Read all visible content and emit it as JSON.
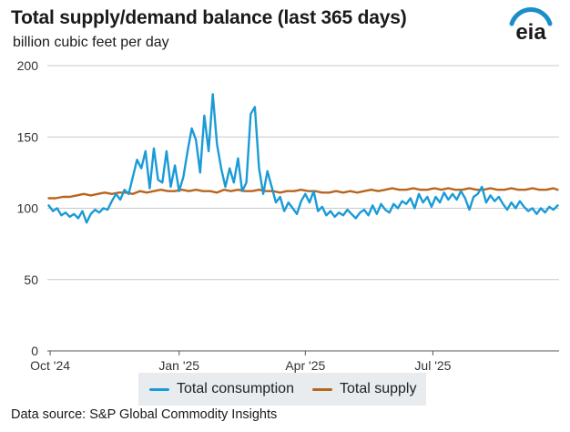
{
  "header": {
    "title": "Total supply/demand balance (last 365 days)",
    "subtitle": "billion cubic feet per day",
    "logo_text": "eia"
  },
  "legend": {
    "consumption_label": "Total consumption",
    "supply_label": "Total supply"
  },
  "footer": {
    "source": "Data source: S&P Global Commodity Insights"
  },
  "colors": {
    "consumption": "#1a9bd7",
    "supply": "#b8651f",
    "grid": "#c8c8c8",
    "logo_arc": "#1b8dc9"
  },
  "chart_data": {
    "type": "line",
    "ylim": [
      0,
      200
    ],
    "yticks": [
      0,
      50,
      100,
      150,
      200
    ],
    "xlim": [
      "2024-09-29",
      "2025-09-29"
    ],
    "xticks": [
      {
        "date": "2024-10-01",
        "label": "Oct '24"
      },
      {
        "date": "2025-01-01",
        "label": "Jan '25"
      },
      {
        "date": "2025-04-01",
        "label": "Apr '25"
      },
      {
        "date": "2025-07-01",
        "label": "Jul '25"
      }
    ],
    "grid": true,
    "legend_position": "bottom",
    "series": [
      {
        "name": "Total consumption",
        "points": [
          [
            "2024-09-30",
            102
          ],
          [
            "2024-10-03",
            98
          ],
          [
            "2024-10-06",
            100
          ],
          [
            "2024-10-09",
            95
          ],
          [
            "2024-10-12",
            97
          ],
          [
            "2024-10-15",
            94
          ],
          [
            "2024-10-18",
            96
          ],
          [
            "2024-10-21",
            93
          ],
          [
            "2024-10-24",
            98
          ],
          [
            "2024-10-27",
            90
          ],
          [
            "2024-10-30",
            96
          ],
          [
            "2024-11-02",
            99
          ],
          [
            "2024-11-05",
            97
          ],
          [
            "2024-11-08",
            100
          ],
          [
            "2024-11-11",
            99
          ],
          [
            "2024-11-14",
            105
          ],
          [
            "2024-11-17",
            110
          ],
          [
            "2024-11-20",
            106
          ],
          [
            "2024-11-23",
            113
          ],
          [
            "2024-11-26",
            110
          ],
          [
            "2024-11-29",
            122
          ],
          [
            "2024-12-02",
            134
          ],
          [
            "2024-12-05",
            128
          ],
          [
            "2024-12-08",
            140
          ],
          [
            "2024-12-11",
            114
          ],
          [
            "2024-12-14",
            142
          ],
          [
            "2024-12-17",
            120
          ],
          [
            "2024-12-20",
            118
          ],
          [
            "2024-12-23",
            140
          ],
          [
            "2024-12-26",
            115
          ],
          [
            "2024-12-29",
            130
          ],
          [
            "2025-01-01",
            112
          ],
          [
            "2025-01-04",
            122
          ],
          [
            "2025-01-07",
            140
          ],
          [
            "2025-01-10",
            156
          ],
          [
            "2025-01-13",
            148
          ],
          [
            "2025-01-16",
            125
          ],
          [
            "2025-01-19",
            165
          ],
          [
            "2025-01-22",
            140
          ],
          [
            "2025-01-25",
            180
          ],
          [
            "2025-01-28",
            145
          ],
          [
            "2025-01-31",
            128
          ],
          [
            "2025-02-03",
            115
          ],
          [
            "2025-02-06",
            128
          ],
          [
            "2025-02-09",
            118
          ],
          [
            "2025-02-12",
            135
          ],
          [
            "2025-02-15",
            112
          ],
          [
            "2025-02-18",
            118
          ],
          [
            "2025-02-21",
            166
          ],
          [
            "2025-02-24",
            171
          ],
          [
            "2025-02-27",
            128
          ],
          [
            "2025-03-02",
            110
          ],
          [
            "2025-03-05",
            126
          ],
          [
            "2025-03-08",
            115
          ],
          [
            "2025-03-11",
            104
          ],
          [
            "2025-03-14",
            108
          ],
          [
            "2025-03-17",
            98
          ],
          [
            "2025-03-20",
            104
          ],
          [
            "2025-03-23",
            100
          ],
          [
            "2025-03-26",
            96
          ],
          [
            "2025-03-29",
            105
          ],
          [
            "2025-04-01",
            110
          ],
          [
            "2025-04-04",
            104
          ],
          [
            "2025-04-07",
            112
          ],
          [
            "2025-04-10",
            98
          ],
          [
            "2025-04-13",
            101
          ],
          [
            "2025-04-16",
            95
          ],
          [
            "2025-04-19",
            98
          ],
          [
            "2025-04-22",
            94
          ],
          [
            "2025-04-25",
            97
          ],
          [
            "2025-04-28",
            95
          ],
          [
            "2025-05-01",
            99
          ],
          [
            "2025-05-04",
            96
          ],
          [
            "2025-05-07",
            93
          ],
          [
            "2025-05-10",
            97
          ],
          [
            "2025-05-13",
            99
          ],
          [
            "2025-05-16",
            95
          ],
          [
            "2025-05-19",
            102
          ],
          [
            "2025-05-22",
            96
          ],
          [
            "2025-05-25",
            103
          ],
          [
            "2025-05-28",
            99
          ],
          [
            "2025-05-31",
            97
          ],
          [
            "2025-06-03",
            103
          ],
          [
            "2025-06-06",
            100
          ],
          [
            "2025-06-09",
            105
          ],
          [
            "2025-06-12",
            103
          ],
          [
            "2025-06-15",
            107
          ],
          [
            "2025-06-18",
            100
          ],
          [
            "2025-06-21",
            110
          ],
          [
            "2025-06-24",
            104
          ],
          [
            "2025-06-27",
            108
          ],
          [
            "2025-06-30",
            101
          ],
          [
            "2025-07-03",
            108
          ],
          [
            "2025-07-06",
            104
          ],
          [
            "2025-07-09",
            111
          ],
          [
            "2025-07-12",
            106
          ],
          [
            "2025-07-15",
            110
          ],
          [
            "2025-07-18",
            106
          ],
          [
            "2025-07-21",
            112
          ],
          [
            "2025-07-24",
            107
          ],
          [
            "2025-07-27",
            99
          ],
          [
            "2025-07-30",
            108
          ],
          [
            "2025-08-02",
            110
          ],
          [
            "2025-08-05",
            115
          ],
          [
            "2025-08-08",
            104
          ],
          [
            "2025-08-11",
            109
          ],
          [
            "2025-08-14",
            105
          ],
          [
            "2025-08-17",
            108
          ],
          [
            "2025-08-20",
            103
          ],
          [
            "2025-08-23",
            99
          ],
          [
            "2025-08-26",
            104
          ],
          [
            "2025-08-29",
            100
          ],
          [
            "2025-09-01",
            105
          ],
          [
            "2025-09-04",
            101
          ],
          [
            "2025-09-07",
            98
          ],
          [
            "2025-09-10",
            100
          ],
          [
            "2025-09-13",
            96
          ],
          [
            "2025-09-16",
            100
          ],
          [
            "2025-09-19",
            97
          ],
          [
            "2025-09-22",
            101
          ],
          [
            "2025-09-25",
            99
          ],
          [
            "2025-09-28",
            102
          ]
        ]
      },
      {
        "name": "Total supply",
        "points": [
          [
            "2024-09-30",
            107
          ],
          [
            "2024-10-05",
            107
          ],
          [
            "2024-10-10",
            108
          ],
          [
            "2024-10-15",
            108
          ],
          [
            "2024-10-20",
            109
          ],
          [
            "2024-10-25",
            110
          ],
          [
            "2024-10-30",
            109
          ],
          [
            "2024-11-04",
            110
          ],
          [
            "2024-11-09",
            111
          ],
          [
            "2024-11-14",
            110
          ],
          [
            "2024-11-19",
            111
          ],
          [
            "2024-11-24",
            111
          ],
          [
            "2024-11-29",
            110
          ],
          [
            "2024-12-04",
            112
          ],
          [
            "2024-12-09",
            111
          ],
          [
            "2024-12-14",
            112
          ],
          [
            "2024-12-19",
            113
          ],
          [
            "2024-12-24",
            112
          ],
          [
            "2024-12-29",
            112
          ],
          [
            "2025-01-03",
            113
          ],
          [
            "2025-01-08",
            112
          ],
          [
            "2025-01-13",
            113
          ],
          [
            "2025-01-18",
            112
          ],
          [
            "2025-01-23",
            112
          ],
          [
            "2025-01-28",
            111
          ],
          [
            "2025-02-02",
            113
          ],
          [
            "2025-02-07",
            112
          ],
          [
            "2025-02-12",
            113
          ],
          [
            "2025-02-17",
            112
          ],
          [
            "2025-02-22",
            112
          ],
          [
            "2025-02-27",
            113
          ],
          [
            "2025-03-04",
            112
          ],
          [
            "2025-03-09",
            112
          ],
          [
            "2025-03-14",
            111
          ],
          [
            "2025-03-19",
            112
          ],
          [
            "2025-03-24",
            112
          ],
          [
            "2025-03-29",
            113
          ],
          [
            "2025-04-03",
            112
          ],
          [
            "2025-04-08",
            112
          ],
          [
            "2025-04-13",
            111
          ],
          [
            "2025-04-18",
            111
          ],
          [
            "2025-04-23",
            112
          ],
          [
            "2025-04-28",
            111
          ],
          [
            "2025-05-03",
            112
          ],
          [
            "2025-05-08",
            111
          ],
          [
            "2025-05-13",
            112
          ],
          [
            "2025-05-18",
            113
          ],
          [
            "2025-05-23",
            112
          ],
          [
            "2025-05-28",
            113
          ],
          [
            "2025-06-02",
            114
          ],
          [
            "2025-06-07",
            113
          ],
          [
            "2025-06-12",
            113
          ],
          [
            "2025-06-17",
            114
          ],
          [
            "2025-06-22",
            113
          ],
          [
            "2025-06-27",
            113
          ],
          [
            "2025-07-02",
            114
          ],
          [
            "2025-07-07",
            113
          ],
          [
            "2025-07-12",
            114
          ],
          [
            "2025-07-17",
            113
          ],
          [
            "2025-07-22",
            113
          ],
          [
            "2025-07-27",
            114
          ],
          [
            "2025-08-01",
            113
          ],
          [
            "2025-08-06",
            113
          ],
          [
            "2025-08-11",
            114
          ],
          [
            "2025-08-16",
            113
          ],
          [
            "2025-08-21",
            113
          ],
          [
            "2025-08-26",
            114
          ],
          [
            "2025-08-31",
            113
          ],
          [
            "2025-09-05",
            113
          ],
          [
            "2025-09-10",
            114
          ],
          [
            "2025-09-15",
            113
          ],
          [
            "2025-09-20",
            113
          ],
          [
            "2025-09-25",
            114
          ],
          [
            "2025-09-28",
            113
          ]
        ]
      }
    ]
  }
}
